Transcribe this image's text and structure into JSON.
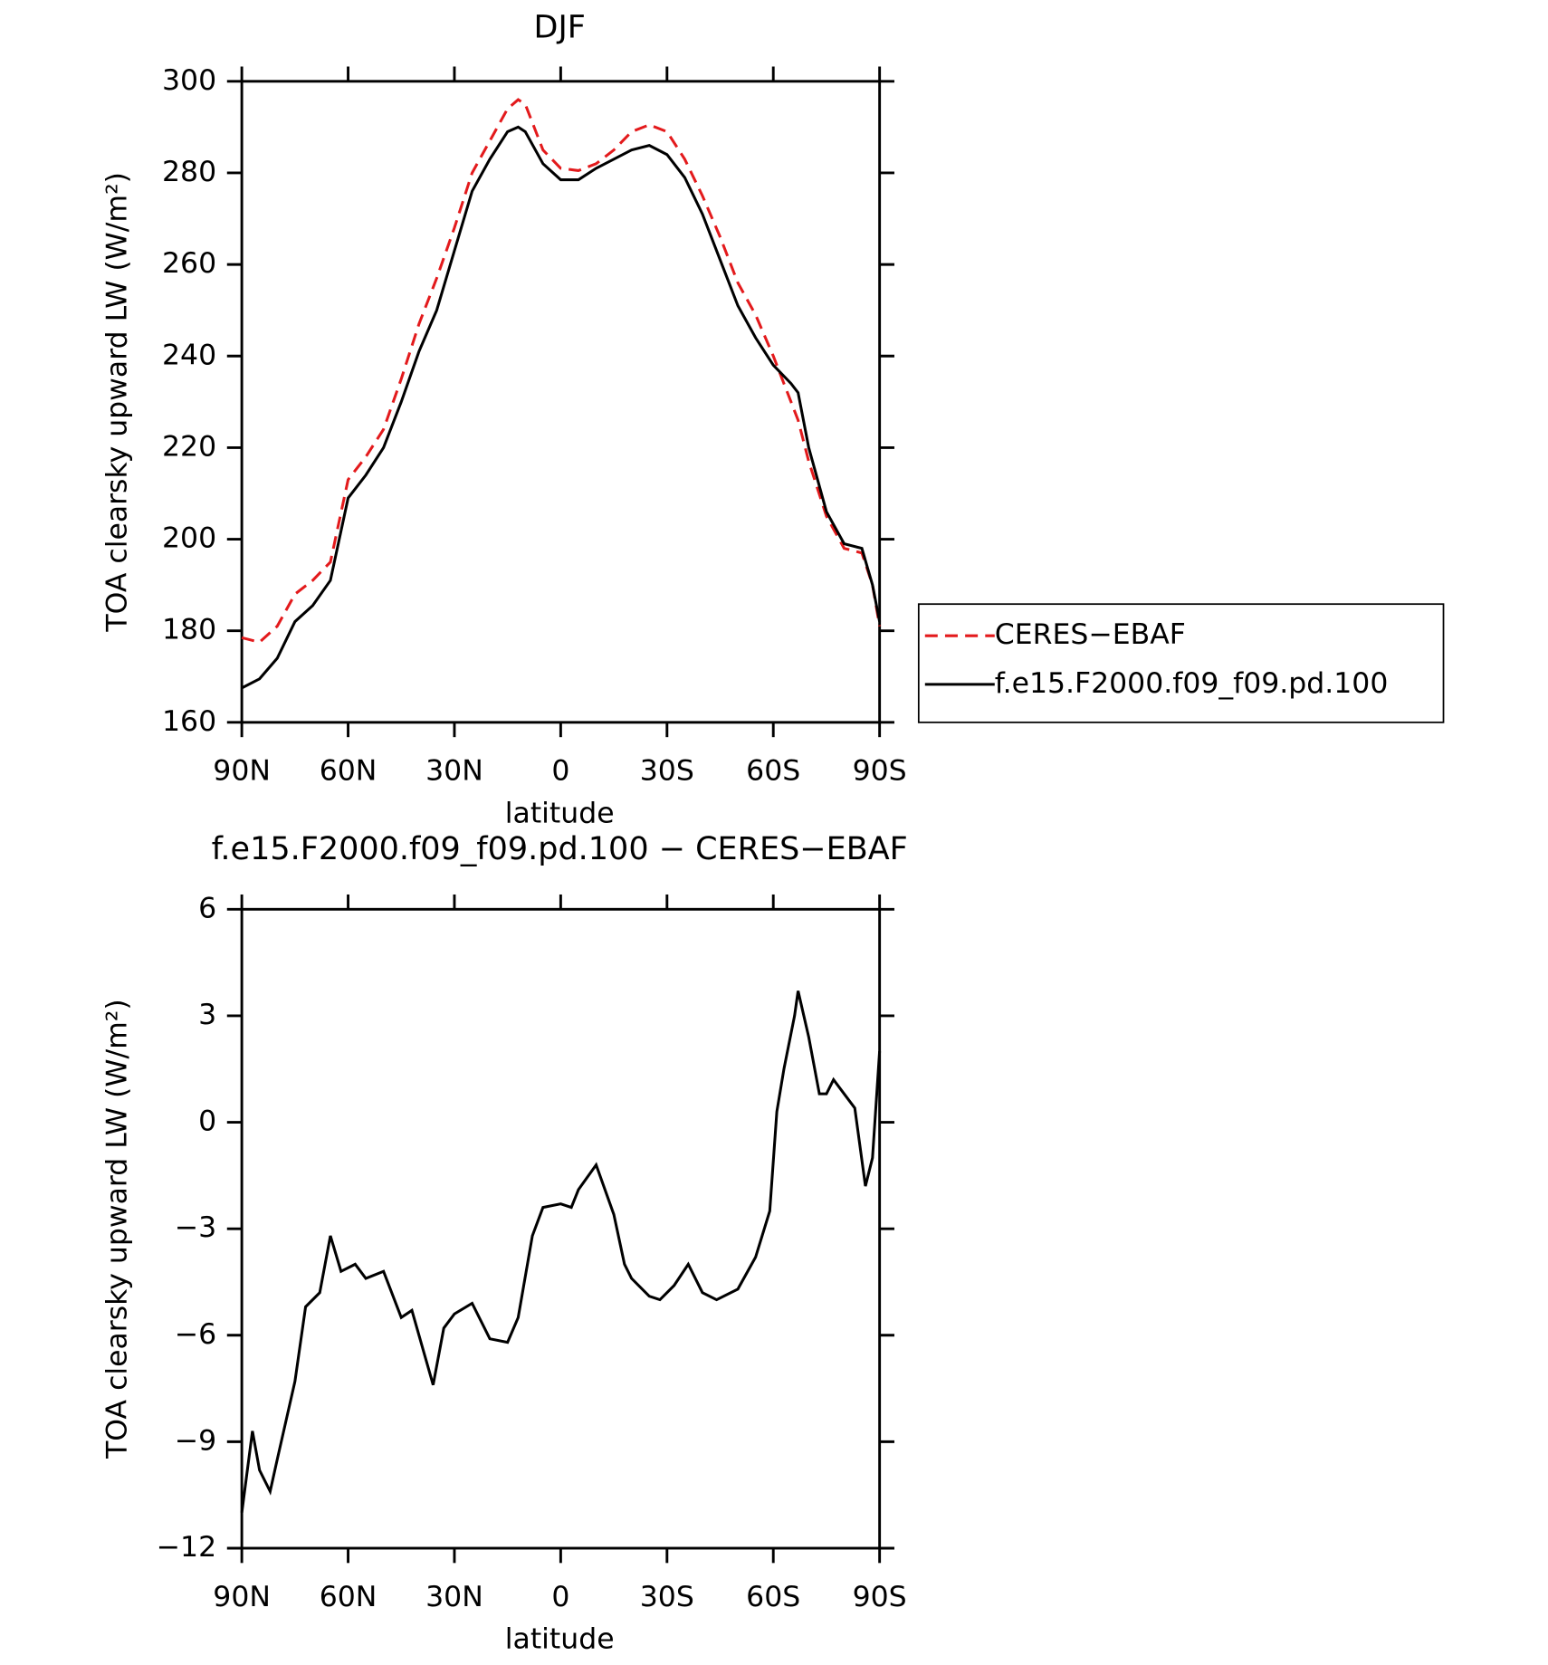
{
  "chart_data": [
    {
      "type": "line",
      "title": "DJF",
      "xlabel": "latitude",
      "ylabel": "TOA clearsky upward LW (W/m²)",
      "x": [
        90,
        85,
        80,
        75,
        70,
        65,
        60,
        55,
        50,
        45,
        40,
        35,
        30,
        25,
        20,
        15,
        12,
        10,
        5,
        0,
        -5,
        -10,
        -15,
        -20,
        -25,
        -30,
        -35,
        -40,
        -45,
        -50,
        -55,
        -60,
        -65,
        -67,
        -70,
        -75,
        -80,
        -85,
        -88,
        -90
      ],
      "series": [
        {
          "name": "CERES−EBAF",
          "color": "#e31a1c",
          "dash": true,
          "values": [
            178.5,
            177.5,
            181,
            188,
            191,
            195,
            213,
            218,
            224,
            235,
            247,
            257,
            268,
            280,
            287,
            294,
            296,
            295,
            285,
            281,
            280.5,
            282,
            285,
            289,
            290.5,
            289,
            283,
            275,
            266,
            256,
            249,
            240,
            230,
            226,
            217,
            205,
            198,
            197,
            190,
            181
          ]
        },
        {
          "name": "f.e15.F2000.f09_f09.pd.100",
          "color": "#000000",
          "dash": false,
          "values": [
            167.5,
            169.5,
            174,
            182,
            185.5,
            191,
            209,
            214,
            220,
            230,
            241,
            250,
            263,
            276,
            283,
            289,
            290,
            289,
            282,
            278.5,
            278.5,
            281,
            283,
            285,
            286,
            284,
            279,
            271,
            261,
            251,
            244,
            238,
            234,
            232,
            220,
            206,
            199,
            198,
            190,
            182
          ]
        }
      ],
      "xlim": [
        90,
        -90
      ],
      "xticks": [
        {
          "value": 90,
          "label": "90N"
        },
        {
          "value": 60,
          "label": "60N"
        },
        {
          "value": 30,
          "label": "30N"
        },
        0,
        {
          "value": -30,
          "label": "30S"
        },
        {
          "value": -60,
          "label": "60S"
        },
        {
          "value": -90,
          "label": "90S"
        }
      ],
      "ylim": [
        160,
        300
      ],
      "yticks": [
        160,
        180,
        200,
        220,
        240,
        260,
        280,
        300
      ],
      "legend": "right"
    },
    {
      "type": "line",
      "title": "f.e15.F2000.f09_f09.pd.100 − CERES−EBAF",
      "xlabel": "latitude",
      "ylabel": "TOA clearsky upward LW (W/m²)",
      "x": [
        90,
        87,
        85,
        82,
        80,
        75,
        72,
        68,
        65,
        62,
        58,
        55,
        50,
        45,
        42,
        38,
        36,
        33,
        30,
        25,
        20,
        15,
        12,
        8,
        5,
        0,
        -3,
        -5,
        -10,
        -15,
        -18,
        -20,
        -25,
        -28,
        -32,
        -36,
        -40,
        -44,
        -50,
        -55,
        -59,
        -61,
        -63,
        -66,
        -67,
        -70,
        -73,
        -75,
        -77,
        -80,
        -83,
        -86,
        -88,
        -90
      ],
      "values": [
        -11,
        -8.7,
        -9.8,
        -10.4,
        -9.5,
        -7.3,
        -5.2,
        -4.8,
        -3.2,
        -4.2,
        -4.0,
        -4.4,
        -4.2,
        -5.5,
        -5.3,
        -6.7,
        -7.4,
        -5.8,
        -5.4,
        -5.1,
        -6.1,
        -6.2,
        -5.5,
        -3.2,
        -2.4,
        -2.3,
        -2.4,
        -1.9,
        -1.2,
        -2.6,
        -4.0,
        -4.4,
        -4.9,
        -5.0,
        -4.6,
        -4.0,
        -4.8,
        -5.0,
        -4.7,
        -3.8,
        -2.5,
        0.3,
        1.5,
        3.0,
        3.7,
        2.4,
        0.8,
        0.8,
        1.2,
        0.8,
        0.4,
        -1.8,
        -1.0,
        2.0
      ],
      "color": "#000000",
      "xlim": [
        90,
        -90
      ],
      "xticks": [
        {
          "value": 90,
          "label": "90N"
        },
        {
          "value": 60,
          "label": "60N"
        },
        {
          "value": 30,
          "label": "30N"
        },
        0,
        {
          "value": -30,
          "label": "30S"
        },
        {
          "value": -60,
          "label": "60S"
        },
        {
          "value": -90,
          "label": "90S"
        }
      ],
      "ylim": [
        -12,
        6
      ],
      "yticks": [
        {
          "value": -12,
          "label": "−12"
        },
        {
          "value": -9,
          "label": "−9"
        },
        {
          "value": -6,
          "label": "−6"
        },
        {
          "value": -3,
          "label": "−3"
        },
        0,
        3,
        6
      ]
    }
  ]
}
